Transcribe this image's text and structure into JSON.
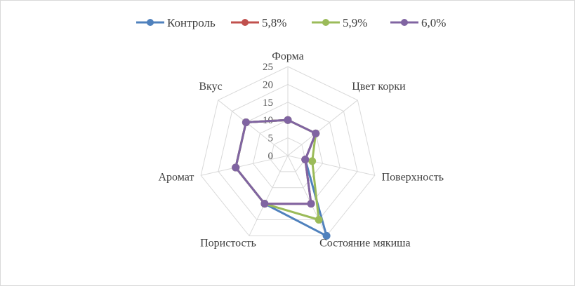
{
  "chart_data": {
    "type": "radar",
    "categories": [
      "Форма",
      "Цвет корки",
      "Поверхность",
      "Состояние мякиша",
      "Пористость",
      "Аромат",
      "Вкус"
    ],
    "ticks": [
      "0",
      "5",
      "10",
      "15",
      "20",
      "25"
    ],
    "rlim": [
      0,
      25
    ],
    "grid": true,
    "legend_position": "top",
    "series": [
      {
        "name": "Контроль",
        "color": "#4f81bd",
        "values": [
          10,
          10,
          5,
          25,
          15,
          15,
          15
        ]
      },
      {
        "name": "5,8%",
        "color": "#c0504d",
        "values": [
          10,
          10,
          5,
          15,
          15,
          15,
          15
        ]
      },
      {
        "name": "5,9%",
        "color": "#9bbb59",
        "values": [
          10,
          10,
          7,
          20,
          15,
          15,
          15
        ]
      },
      {
        "name": "6,0%",
        "color": "#8064a2",
        "values": [
          10,
          10,
          5,
          15,
          15,
          15,
          15
        ]
      }
    ]
  }
}
